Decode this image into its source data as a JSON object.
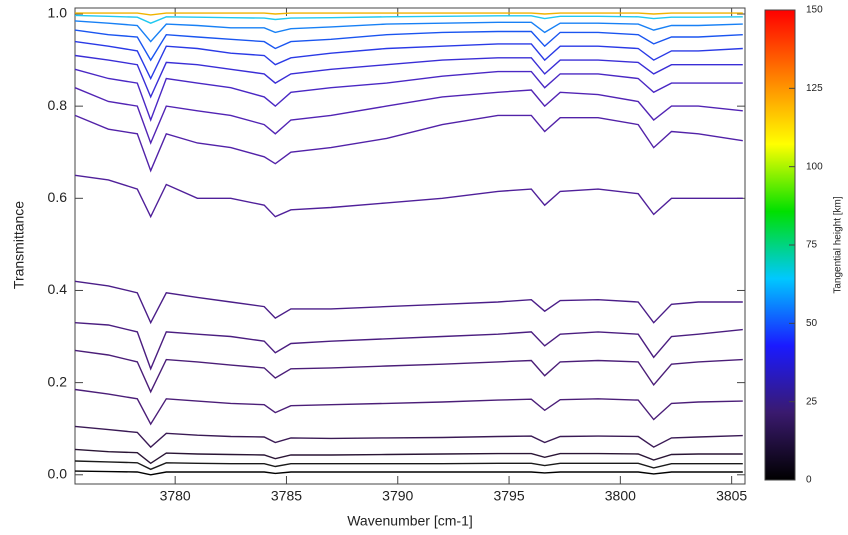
{
  "chart_data": {
    "type": "line",
    "xlabel": "Wavenumber [cm-1]",
    "ylabel": "Transmittance",
    "x": [
      3775.5,
      3777.0,
      3778.3,
      3778.9,
      3779.6,
      3781.0,
      3782.5,
      3784.0,
      3784.5,
      3785.2,
      3787.0,
      3789.5,
      3792.0,
      3794.5,
      3796.0,
      3796.6,
      3797.3,
      3799.0,
      3800.8,
      3801.5,
      3802.3,
      3803.5,
      3805.5
    ],
    "xlim": [
      3775.5,
      3805.6
    ],
    "ylim": [
      -0.02,
      1.013
    ],
    "xticks": [
      3780,
      3785,
      3790,
      3795,
      3800,
      3805
    ],
    "yticks": [
      {
        "value": 0,
        "label": "0.0"
      },
      0.2,
      0.4,
      0.6,
      0.8,
      {
        "value": 1,
        "label": "1.0"
      }
    ],
    "series": [
      {
        "color": "#000000",
        "values": [
          0.008,
          0.007,
          0.006,
          0.0,
          0.006,
          0.006,
          0.006,
          0.006,
          0.003,
          0.006,
          0.006,
          0.006,
          0.006,
          0.006,
          0.006,
          0.004,
          0.006,
          0.006,
          0.006,
          0.002,
          0.006,
          0.006,
          0.006
        ]
      },
      {
        "color": "#1a1a1a",
        "values": [
          0.03,
          0.028,
          0.026,
          0.012,
          0.026,
          0.025,
          0.024,
          0.024,
          0.018,
          0.024,
          0.024,
          0.024,
          0.024,
          0.025,
          0.025,
          0.02,
          0.025,
          0.025,
          0.025,
          0.015,
          0.024,
          0.024,
          0.024
        ]
      },
      {
        "color": "#2a1535",
        "values": [
          0.055,
          0.05,
          0.048,
          0.025,
          0.047,
          0.045,
          0.044,
          0.043,
          0.035,
          0.043,
          0.043,
          0.044,
          0.045,
          0.046,
          0.046,
          0.038,
          0.046,
          0.046,
          0.045,
          0.032,
          0.044,
          0.045,
          0.045
        ]
      },
      {
        "color": "#3a1a55",
        "values": [
          0.105,
          0.098,
          0.092,
          0.06,
          0.09,
          0.086,
          0.083,
          0.082,
          0.07,
          0.08,
          0.079,
          0.08,
          0.081,
          0.083,
          0.084,
          0.07,
          0.083,
          0.084,
          0.083,
          0.06,
          0.08,
          0.082,
          0.085
        ]
      },
      {
        "color": "#4b1e78",
        "values": [
          0.185,
          0.175,
          0.165,
          0.11,
          0.165,
          0.16,
          0.155,
          0.152,
          0.135,
          0.15,
          0.152,
          0.155,
          0.158,
          0.162,
          0.164,
          0.14,
          0.163,
          0.165,
          0.162,
          0.12,
          0.155,
          0.158,
          0.16
        ]
      },
      {
        "color": "#4b1e78",
        "values": [
          0.27,
          0.26,
          0.245,
          0.18,
          0.25,
          0.245,
          0.238,
          0.232,
          0.21,
          0.23,
          0.232,
          0.236,
          0.24,
          0.245,
          0.248,
          0.215,
          0.245,
          0.248,
          0.245,
          0.195,
          0.24,
          0.245,
          0.25
        ]
      },
      {
        "color": "#4b1e80",
        "values": [
          0.33,
          0.325,
          0.31,
          0.23,
          0.31,
          0.305,
          0.3,
          0.29,
          0.265,
          0.285,
          0.29,
          0.295,
          0.3,
          0.305,
          0.31,
          0.28,
          0.305,
          0.31,
          0.305,
          0.255,
          0.3,
          0.305,
          0.315
        ]
      },
      {
        "color": "#4b1e88",
        "values": [
          0.42,
          0.41,
          0.395,
          0.33,
          0.395,
          0.385,
          0.375,
          0.365,
          0.34,
          0.36,
          0.36,
          0.365,
          0.37,
          0.375,
          0.38,
          0.355,
          0.378,
          0.38,
          0.375,
          0.33,
          0.37,
          0.375,
          0.375
        ]
      },
      {
        "color": "#50209a",
        "values": [
          0.65,
          0.64,
          0.62,
          0.56,
          0.63,
          0.6,
          0.6,
          0.585,
          0.56,
          0.575,
          0.58,
          0.59,
          0.6,
          0.615,
          0.62,
          0.585,
          0.615,
          0.62,
          0.61,
          0.565,
          0.6,
          0.6,
          0.6
        ]
      },
      {
        "color": "#5222a8",
        "values": [
          0.78,
          0.75,
          0.74,
          0.66,
          0.74,
          0.72,
          0.71,
          0.69,
          0.675,
          0.7,
          0.71,
          0.73,
          0.76,
          0.78,
          0.78,
          0.745,
          0.775,
          0.775,
          0.76,
          0.71,
          0.745,
          0.74,
          0.725
        ]
      },
      {
        "color": "#5224b4",
        "values": [
          0.84,
          0.81,
          0.8,
          0.72,
          0.8,
          0.79,
          0.78,
          0.76,
          0.74,
          0.77,
          0.78,
          0.8,
          0.82,
          0.83,
          0.835,
          0.8,
          0.83,
          0.825,
          0.81,
          0.77,
          0.8,
          0.8,
          0.79
        ]
      },
      {
        "color": "#4a28c4",
        "values": [
          0.88,
          0.86,
          0.85,
          0.77,
          0.86,
          0.85,
          0.84,
          0.82,
          0.8,
          0.83,
          0.84,
          0.85,
          0.865,
          0.875,
          0.875,
          0.84,
          0.87,
          0.87,
          0.86,
          0.83,
          0.85,
          0.85,
          0.85
        ]
      },
      {
        "color": "#3a2ed6",
        "values": [
          0.91,
          0.9,
          0.89,
          0.82,
          0.895,
          0.89,
          0.88,
          0.87,
          0.85,
          0.87,
          0.88,
          0.89,
          0.9,
          0.905,
          0.905,
          0.87,
          0.9,
          0.9,
          0.895,
          0.87,
          0.89,
          0.89,
          0.89
        ]
      },
      {
        "color": "#2a3ae6",
        "values": [
          0.94,
          0.93,
          0.92,
          0.86,
          0.93,
          0.925,
          0.915,
          0.91,
          0.89,
          0.905,
          0.915,
          0.925,
          0.93,
          0.935,
          0.935,
          0.9,
          0.93,
          0.93,
          0.925,
          0.9,
          0.92,
          0.92,
          0.925
        ]
      },
      {
        "color": "#1a55f0",
        "values": [
          0.965,
          0.955,
          0.95,
          0.9,
          0.955,
          0.95,
          0.945,
          0.94,
          0.925,
          0.94,
          0.945,
          0.955,
          0.96,
          0.962,
          0.962,
          0.93,
          0.96,
          0.96,
          0.955,
          0.935,
          0.95,
          0.95,
          0.955
        ]
      },
      {
        "color": "#1880f5",
        "values": [
          0.985,
          0.98,
          0.975,
          0.94,
          0.978,
          0.975,
          0.97,
          0.97,
          0.96,
          0.968,
          0.972,
          0.978,
          0.98,
          0.982,
          0.982,
          0.96,
          0.98,
          0.98,
          0.978,
          0.965,
          0.975,
          0.975,
          0.978
        ]
      },
      {
        "color": "#20c8f0",
        "values": [
          0.997,
          0.995,
          0.993,
          0.98,
          0.994,
          0.993,
          0.992,
          0.991,
          0.988,
          0.991,
          0.992,
          0.994,
          0.995,
          0.996,
          0.996,
          0.99,
          0.995,
          0.995,
          0.994,
          0.99,
          0.993,
          0.993,
          0.994
        ]
      },
      {
        "color": "#f0b400",
        "values": [
          1.002,
          1.002,
          1.002,
          0.998,
          1.002,
          1.002,
          1.002,
          1.002,
          1.0,
          1.002,
          1.002,
          1.002,
          1.002,
          1.002,
          1.002,
          1.0,
          1.002,
          1.002,
          1.002,
          1.0,
          1.002,
          1.002,
          1.002
        ]
      }
    ],
    "colorbar": {
      "label": "Tangential height [km]",
      "lim": [
        0,
        150
      ],
      "ticks": [
        0,
        25,
        50,
        75,
        100,
        125,
        150
      ],
      "colors": [
        "#000000",
        "#3a1a6e",
        "#1a1aff",
        "#00c8ff",
        "#00e000",
        "#ffff00",
        "#ff8000",
        "#ff0000"
      ]
    }
  }
}
